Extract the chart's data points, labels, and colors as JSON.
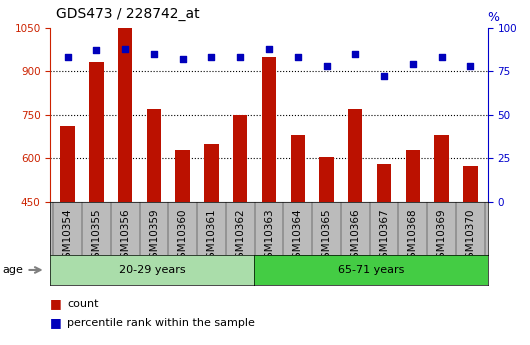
{
  "title": "GDS473 / 228742_at",
  "samples": [
    "GSM10354",
    "GSM10355",
    "GSM10356",
    "GSM10359",
    "GSM10360",
    "GSM10361",
    "GSM10362",
    "GSM10363",
    "GSM10364",
    "GSM10365",
    "GSM10366",
    "GSM10367",
    "GSM10368",
    "GSM10369",
    "GSM10370"
  ],
  "counts": [
    710,
    930,
    1050,
    770,
    630,
    650,
    750,
    950,
    680,
    605,
    770,
    580,
    630,
    680,
    575
  ],
  "percentile_ranks": [
    83,
    87,
    88,
    85,
    82,
    83,
    83,
    88,
    83,
    78,
    85,
    72,
    79,
    83,
    78
  ],
  "group1_label": "20-29 years",
  "group2_label": "65-71 years",
  "group1_count": 7,
  "group2_count": 8,
  "ylim_left": [
    450,
    1050
  ],
  "ylim_right": [
    0,
    100
  ],
  "yticks_left": [
    450,
    600,
    750,
    900,
    1050
  ],
  "yticks_right": [
    0,
    25,
    50,
    75,
    100
  ],
  "bar_color": "#BB1100",
  "dot_color": "#0000BB",
  "group1_bg": "#AADDAA",
  "group2_bg": "#44CC44",
  "xticklabel_bg": "#BBBBBB",
  "legend_bar_color": "#BB1100",
  "legend_dot_color": "#0000BB",
  "left_axis_color": "#CC2200",
  "right_axis_color": "#0000CC",
  "grid_color": "black",
  "grid_linestyle": "dotted",
  "grid_linewidth": 0.8,
  "hgrid_values": [
    600,
    750,
    900
  ],
  "bar_width": 0.5,
  "title_fontsize": 10,
  "tick_fontsize": 7.5,
  "legend_fontsize": 8,
  "age_label_fontsize": 8,
  "group_label_fontsize": 8
}
